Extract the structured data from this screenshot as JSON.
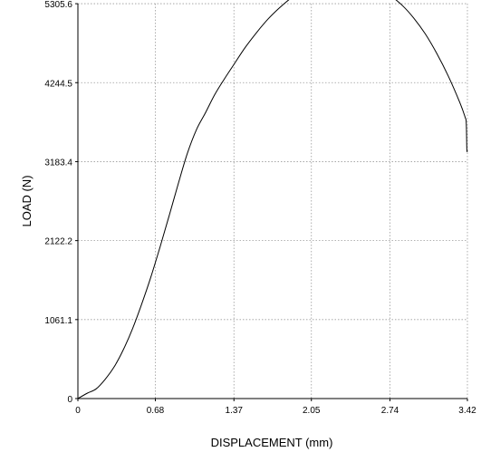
{
  "chart_data": {
    "type": "line",
    "title": "",
    "xlabel": "DISPLACEMENT (mm)",
    "ylabel": "LOAD (N)",
    "xlim": [
      0,
      3.42
    ],
    "ylim": [
      0,
      5306.6
    ],
    "x_ticks": [
      "0",
      "0.68",
      "1.37",
      "2.05",
      "2.74",
      "3.42"
    ],
    "y_ticks": [
      "0",
      "1061.1",
      "2122.2",
      "3183.4",
      "4244.5",
      "5305.6"
    ],
    "grid": true,
    "legend": "none",
    "line_color": "#000000",
    "series": [
      {
        "x": [
          0,
          0.08,
          0.16,
          0.24,
          0.32,
          0.4,
          0.48,
          0.56,
          0.64,
          0.72,
          0.8,
          0.88,
          0.96,
          1.04,
          1.12,
          1.2,
          1.28,
          1.37,
          1.47,
          1.57,
          1.67,
          1.77,
          1.87,
          1.97,
          2.05,
          2.15,
          2.25,
          2.33,
          2.4,
          2.48,
          2.56,
          2.64,
          2.74,
          2.85,
          2.95,
          3.05,
          3.15,
          3.25,
          3.35,
          3.4,
          3.41,
          3.415,
          3.42
        ],
        "values": [
          0,
          70,
          130,
          260,
          430,
          660,
          940,
          1270,
          1630,
          2030,
          2450,
          2880,
          3290,
          3610,
          3840,
          4080,
          4280,
          4490,
          4720,
          4920,
          5100,
          5250,
          5380,
          5490,
          5570,
          5630,
          5670,
          5680,
          5670,
          5640,
          5590,
          5520,
          5420,
          5280,
          5110,
          4900,
          4640,
          4340,
          3990,
          3780,
          3700,
          3350,
          3330
        ]
      }
    ]
  }
}
